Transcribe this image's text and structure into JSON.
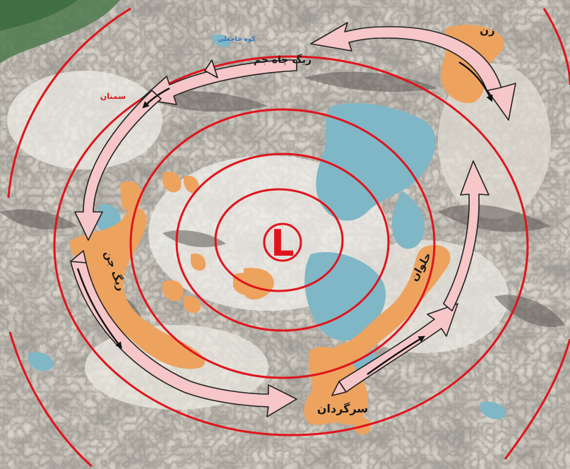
{
  "map": {
    "pressure_symbol": "L",
    "labels": {
      "rig_chah_jam": "ریگ چاه جم",
      "zan": "زن",
      "semnan": "سمنان",
      "kuh_hajaleh": "کوه حاجعلی",
      "rig_jenn": "ریگ جن",
      "halvan": "حلوان",
      "sargardan": "سرگردان"
    },
    "colors": {
      "isobar": "#e0141c",
      "wind_arrow_fill": "#f6c6c8",
      "wind_arrow_stroke": "#222222",
      "sand_dunes": "#eda35e",
      "playa_water": "#7fb7c6",
      "place_label_red": "#d21c1c",
      "place_label_blue": "#2f77c8"
    }
  }
}
